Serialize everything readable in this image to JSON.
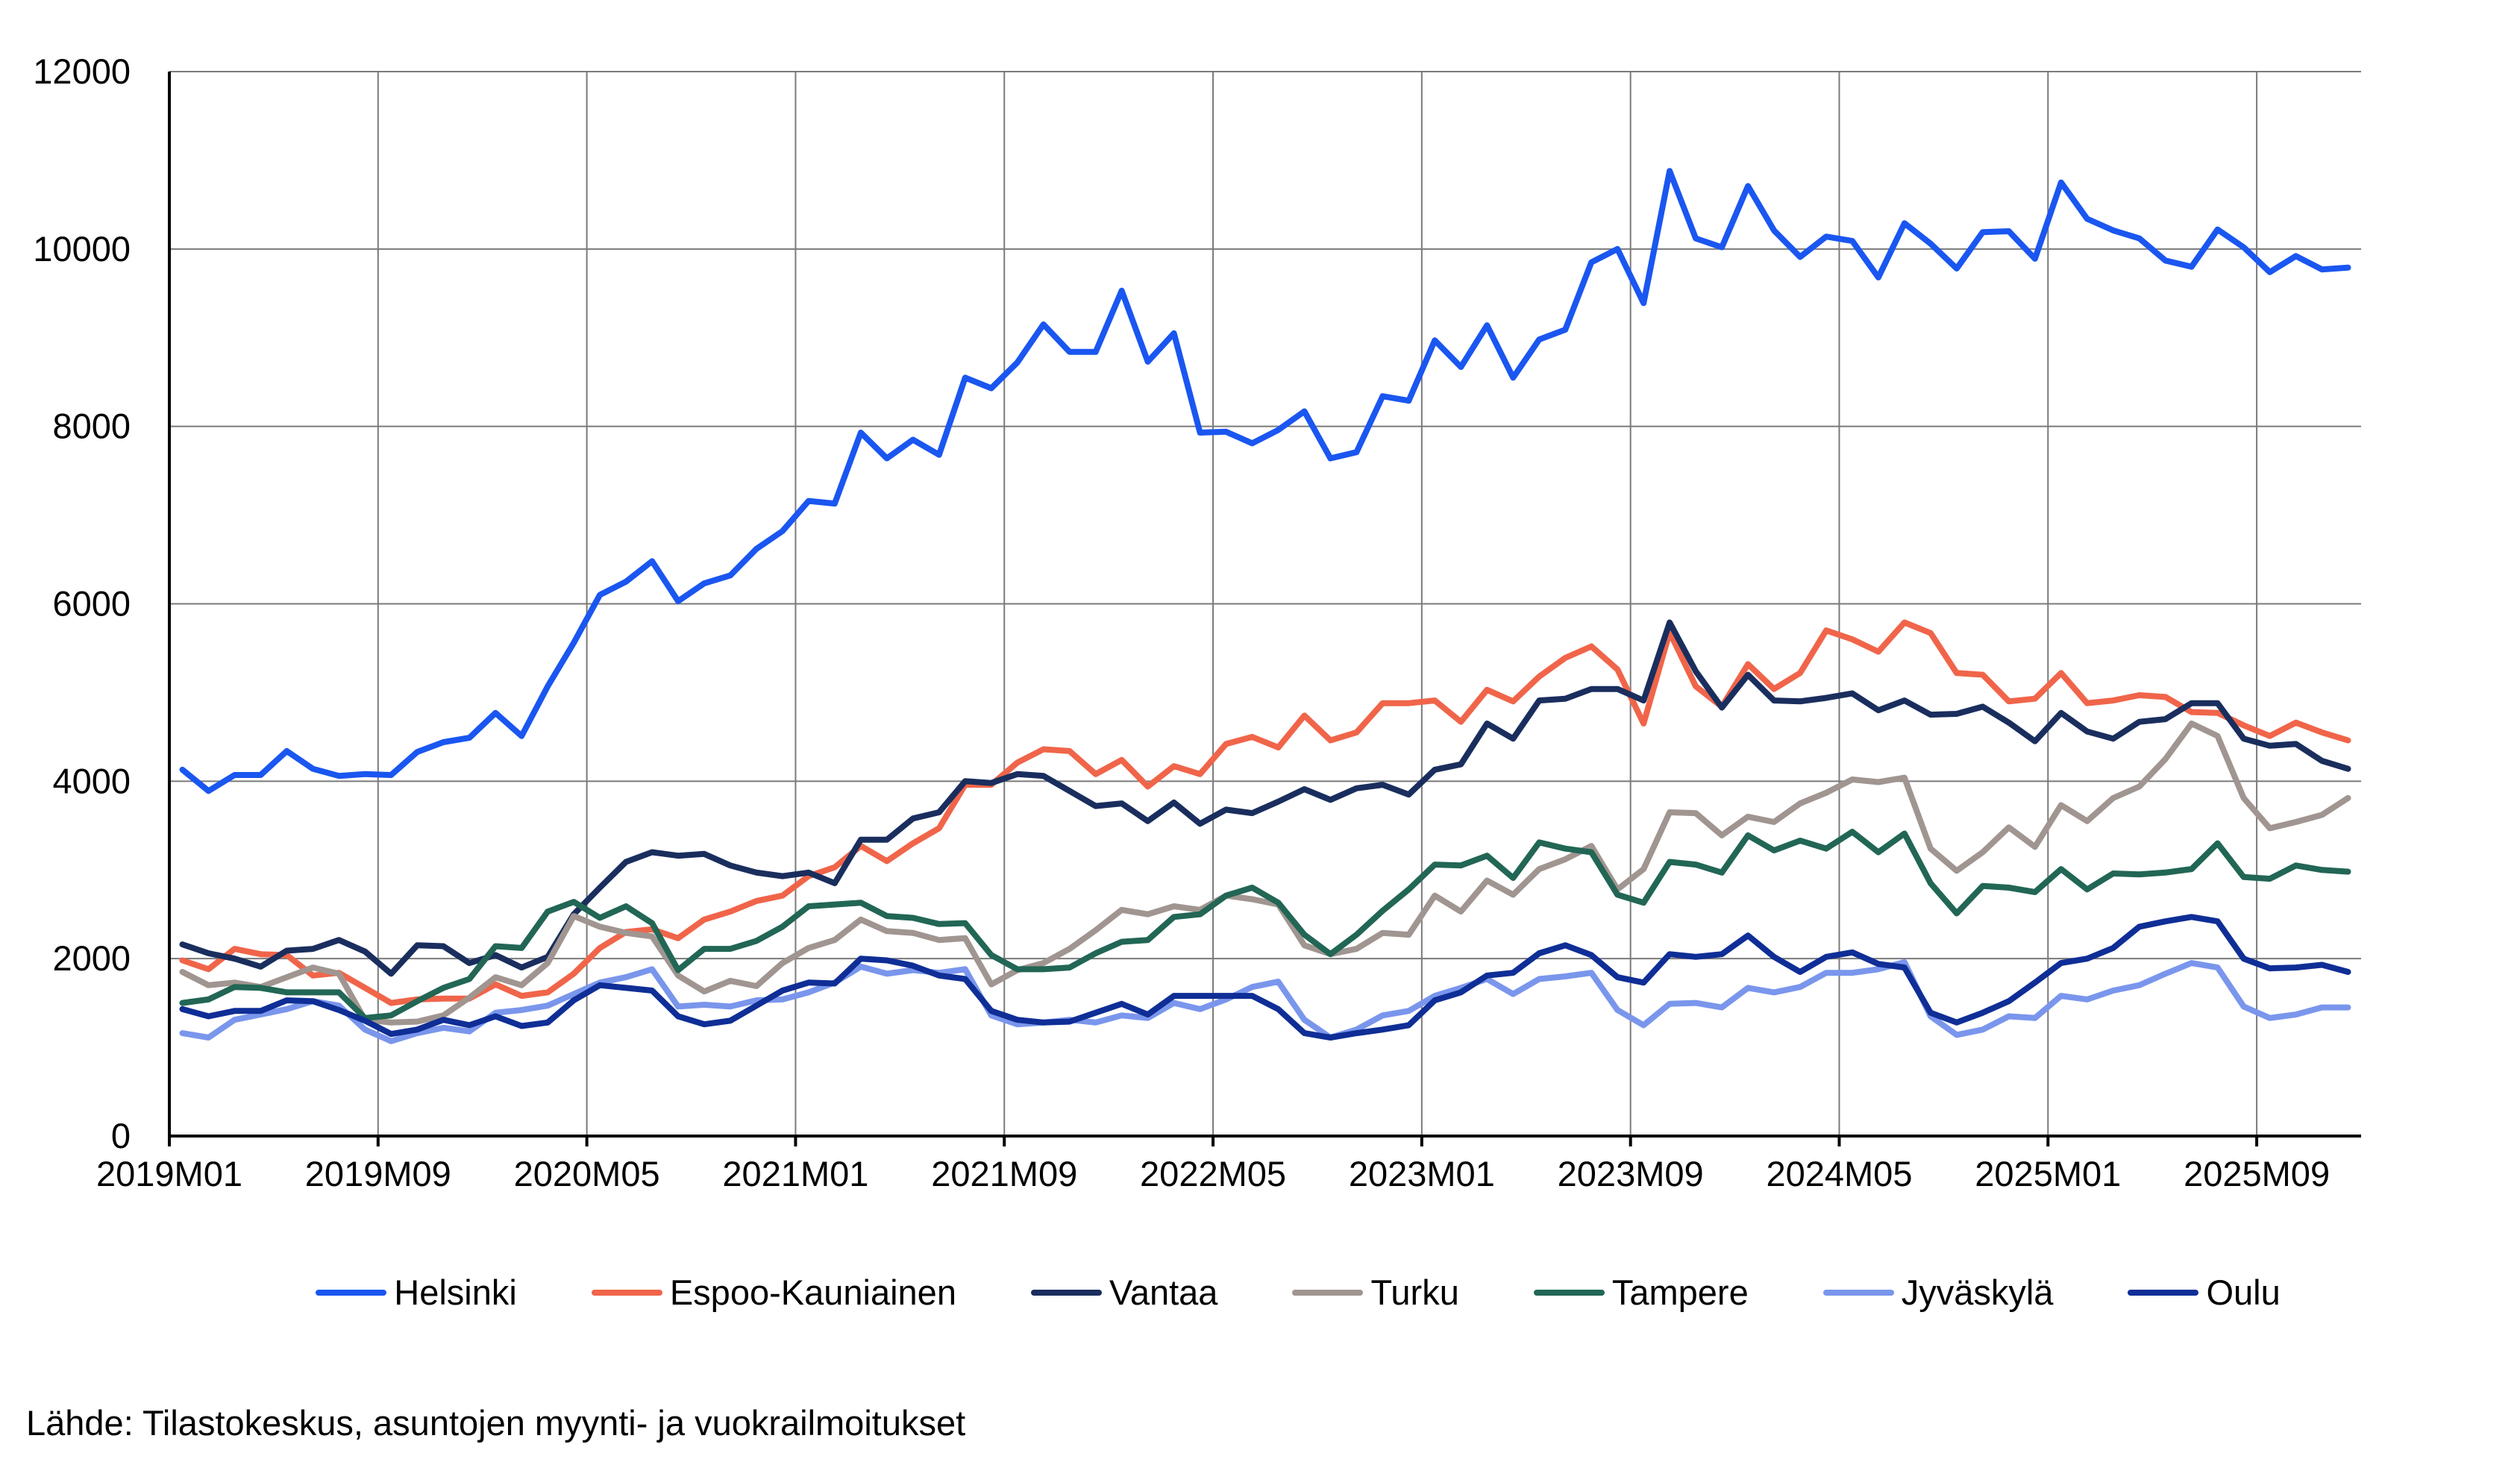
{
  "chart_data": {
    "type": "line",
    "title": "",
    "xlabel": "",
    "ylabel": "",
    "ylim": [
      0,
      12000
    ],
    "yticks": [
      "0",
      "2000",
      "4000",
      "6000",
      "8000",
      "10000",
      "12000"
    ],
    "x_start": "2019M01",
    "x_end": "2025M12",
    "xtick_labels": [
      "2019M01",
      "2019M09",
      "2020M05",
      "2021M01",
      "2021M09",
      "2022M05",
      "2023M01",
      "2023M09",
      "2024M05",
      "2025M01",
      "2025M09"
    ],
    "grid": true,
    "legend_position": "bottom",
    "series": [
      {
        "name": "Helsinki",
        "color": "#1a56f0",
        "values": [
          4130,
          3890,
          4070,
          4070,
          4340,
          4140,
          4060,
          4080,
          4070,
          4330,
          4440,
          4490,
          4770,
          4510,
          5070,
          5560,
          6100,
          6250,
          6480,
          6030,
          6230,
          6320,
          6620,
          6820,
          7160,
          7130,
          7930,
          7640,
          7850,
          7680,
          8550,
          8430,
          8720,
          9150,
          8840,
          8840,
          9530,
          8730,
          9050,
          7930,
          7940,
          7810,
          7960,
          8170,
          7640,
          7710,
          8340,
          8290,
          8970,
          8670,
          9140,
          8550,
          8980,
          9090,
          9850,
          10000,
          9390,
          10880,
          10120,
          10020,
          10710,
          10210,
          9910,
          10140,
          10090,
          9680,
          10290,
          10060,
          9780,
          10190,
          10200,
          9890,
          10750,
          10340,
          10210,
          10120,
          9870,
          9800,
          10220,
          10020,
          9740,
          9920,
          9770,
          9790
        ]
      },
      {
        "name": "Espoo-Kauniainen",
        "color": "#f0654a",
        "values": [
          1980,
          1880,
          2110,
          2050,
          2040,
          1810,
          1840,
          1670,
          1500,
          1540,
          1550,
          1550,
          1710,
          1580,
          1620,
          1830,
          2120,
          2300,
          2330,
          2230,
          2440,
          2530,
          2650,
          2710,
          2930,
          3030,
          3270,
          3100,
          3300,
          3470,
          3960,
          3960,
          4210,
          4360,
          4340,
          4080,
          4240,
          3940,
          4170,
          4080,
          4420,
          4500,
          4380,
          4740,
          4460,
          4550,
          4880,
          4880,
          4910,
          4670,
          5030,
          4900,
          5180,
          5390,
          5520,
          5260,
          4650,
          5680,
          5070,
          4840,
          5320,
          5040,
          5220,
          5700,
          5600,
          5460,
          5790,
          5670,
          5220,
          5200,
          4900,
          4930,
          5220,
          4880,
          4910,
          4970,
          4950,
          4780,
          4770,
          4630,
          4510,
          4660,
          4550,
          4460
        ]
      },
      {
        "name": "Vantaa",
        "color": "#1a2e5e",
        "values": [
          2160,
          2060,
          2000,
          1910,
          2090,
          2110,
          2210,
          2080,
          1830,
          2150,
          2140,
          1950,
          2040,
          1900,
          2020,
          2500,
          2800,
          3090,
          3200,
          3160,
          3180,
          3050,
          2970,
          2930,
          2970,
          2850,
          3340,
          3340,
          3580,
          3650,
          4000,
          3980,
          4080,
          4060,
          3890,
          3720,
          3750,
          3550,
          3760,
          3520,
          3680,
          3640,
          3770,
          3910,
          3790,
          3920,
          3960,
          3850,
          4130,
          4190,
          4650,
          4480,
          4910,
          4930,
          5040,
          5040,
          4910,
          5790,
          5240,
          4830,
          5200,
          4910,
          4900,
          4940,
          4990,
          4800,
          4910,
          4750,
          4760,
          4840,
          4660,
          4450,
          4770,
          4560,
          4480,
          4670,
          4700,
          4880,
          4880,
          4480,
          4400,
          4420,
          4230,
          4140
        ]
      },
      {
        "name": "Turku",
        "color": "#a09590",
        "values": [
          1850,
          1700,
          1730,
          1680,
          1790,
          1900,
          1830,
          1310,
          1280,
          1290,
          1360,
          1560,
          1790,
          1700,
          1950,
          2480,
          2360,
          2290,
          2250,
          1810,
          1630,
          1750,
          1690,
          1950,
          2120,
          2210,
          2440,
          2310,
          2290,
          2210,
          2230,
          1710,
          1870,
          1950,
          2110,
          2320,
          2550,
          2500,
          2590,
          2550,
          2710,
          2670,
          2610,
          2150,
          2050,
          2110,
          2290,
          2270,
          2710,
          2530,
          2880,
          2720,
          3010,
          3120,
          3270,
          2780,
          3010,
          3650,
          3640,
          3390,
          3600,
          3540,
          3750,
          3870,
          4020,
          3990,
          4040,
          3240,
          2990,
          3200,
          3480,
          3260,
          3730,
          3550,
          3810,
          3940,
          4250,
          4650,
          4510,
          3810,
          3470,
          3540,
          3620,
          3810
        ]
      },
      {
        "name": "Tampere",
        "color": "#226655",
        "values": [
          1500,
          1540,
          1680,
          1670,
          1620,
          1620,
          1620,
          1330,
          1360,
          1520,
          1670,
          1770,
          2140,
          2120,
          2530,
          2640,
          2460,
          2590,
          2400,
          1870,
          2110,
          2110,
          2200,
          2360,
          2590,
          2610,
          2630,
          2480,
          2460,
          2390,
          2400,
          2040,
          1880,
          1880,
          1900,
          2060,
          2190,
          2210,
          2470,
          2500,
          2710,
          2800,
          2630,
          2270,
          2050,
          2270,
          2540,
          2780,
          3060,
          3050,
          3160,
          2910,
          3310,
          3240,
          3200,
          2720,
          2630,
          3090,
          3060,
          2970,
          3390,
          3220,
          3330,
          3240,
          3430,
          3200,
          3410,
          2850,
          2510,
          2820,
          2800,
          2750,
          3010,
          2780,
          2960,
          2950,
          2970,
          3010,
          3300,
          2920,
          2900,
          3050,
          3000,
          2980
        ]
      },
      {
        "name": "Jyväskylä",
        "color": "#7a96ec",
        "values": [
          1160,
          1110,
          1310,
          1370,
          1430,
          1520,
          1470,
          1200,
          1070,
          1160,
          1220,
          1180,
          1390,
          1420,
          1470,
          1600,
          1730,
          1790,
          1880,
          1460,
          1480,
          1460,
          1530,
          1540,
          1620,
          1730,
          1910,
          1830,
          1870,
          1840,
          1880,
          1360,
          1260,
          1280,
          1310,
          1280,
          1360,
          1330,
          1500,
          1430,
          1540,
          1680,
          1740,
          1310,
          1110,
          1200,
          1360,
          1410,
          1580,
          1670,
          1770,
          1600,
          1770,
          1800,
          1840,
          1420,
          1250,
          1490,
          1500,
          1450,
          1670,
          1620,
          1680,
          1840,
          1840,
          1880,
          1960,
          1350,
          1140,
          1200,
          1350,
          1330,
          1580,
          1540,
          1640,
          1700,
          1830,
          1950,
          1900,
          1460,
          1330,
          1370,
          1450,
          1450
        ]
      },
      {
        "name": "Oulu",
        "color": "#0f2e96",
        "values": [
          1430,
          1350,
          1410,
          1410,
          1530,
          1520,
          1420,
          1300,
          1150,
          1200,
          1310,
          1250,
          1350,
          1240,
          1280,
          1530,
          1700,
          1670,
          1640,
          1350,
          1260,
          1300,
          1470,
          1640,
          1730,
          1720,
          2000,
          1980,
          1920,
          1810,
          1770,
          1410,
          1310,
          1280,
          1290,
          1390,
          1490,
          1370,
          1580,
          1580,
          1580,
          1580,
          1430,
          1160,
          1110,
          1160,
          1200,
          1250,
          1530,
          1620,
          1810,
          1840,
          2060,
          2150,
          2040,
          1790,
          1730,
          2050,
          2020,
          2050,
          2260,
          2020,
          1850,
          2020,
          2070,
          1940,
          1900,
          1390,
          1280,
          1390,
          1520,
          1730,
          1950,
          2000,
          2120,
          2360,
          2420,
          2470,
          2420,
          2000,
          1890,
          1900,
          1930,
          1850
        ]
      }
    ]
  },
  "source": "Lähde: Tilastokeskus, asuntojen myynti- ja vuokrailmoitukset"
}
